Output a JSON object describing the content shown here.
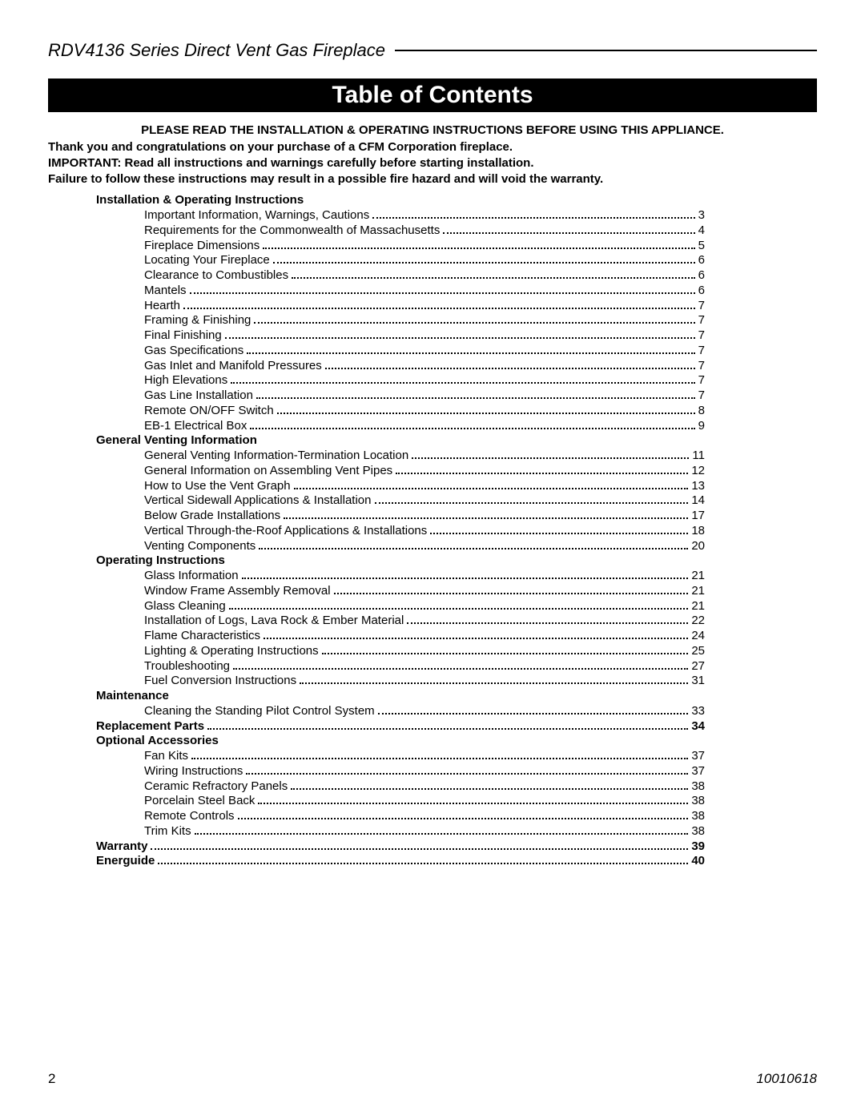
{
  "header": {
    "product_line": "RDV4136 Series Direct Vent Gas Fireplace"
  },
  "title_bar": "Table of Contents",
  "intro_centered": "PLEASE READ THE INSTALLATION & OPERATING INSTRUCTIONS BEFORE USING THIS APPLIANCE.",
  "intro_lines": [
    "Thank you and congratulations on your purchase of a CFM Corporation fireplace.",
    "IMPORTANT:  Read all instructions and warnings carefully before starting installation.",
    "Failure to follow these instructions may result in a possible fire hazard and will void the warranty."
  ],
  "toc": [
    {
      "type": "section",
      "label": "Installation & Operating Instructions"
    },
    {
      "type": "item",
      "label": "Important Information, Warnings, Cautions",
      "page": "3"
    },
    {
      "type": "item",
      "label": "Requirements for the Commonwealth of Massachusetts",
      "page": "4"
    },
    {
      "type": "item",
      "label": "Fireplace Dimensions",
      "page": "5"
    },
    {
      "type": "item",
      "label": "Locating Your Fireplace",
      "page": "6"
    },
    {
      "type": "item",
      "label": "Clearance to Combustibles",
      "page": "6"
    },
    {
      "type": "item",
      "label": "Mantels",
      "page": "6"
    },
    {
      "type": "item",
      "label": "Hearth",
      "page": "7"
    },
    {
      "type": "item",
      "label": "Framing & Finishing",
      "page": "7"
    },
    {
      "type": "item",
      "label": "Final Finishing",
      "page": "7"
    },
    {
      "type": "item",
      "label": "Gas Specifications",
      "page": "7"
    },
    {
      "type": "item",
      "label": "Gas Inlet and Manifold Pressures",
      "page": "7"
    },
    {
      "type": "item",
      "label": "High Elevations",
      "page": "7"
    },
    {
      "type": "item",
      "label": "Gas Line Installation",
      "page": "7"
    },
    {
      "type": "item",
      "label": "Remote ON/OFF Switch",
      "page": "8"
    },
    {
      "type": "item",
      "label": "EB-1 Electrical Box",
      "page": "9"
    },
    {
      "type": "section",
      "label": "General Venting Information"
    },
    {
      "type": "item",
      "label": "General Venting Information-Termination Location",
      "page": "11"
    },
    {
      "type": "item",
      "label": "General Information on Assembling Vent Pipes",
      "page": "12"
    },
    {
      "type": "item",
      "label": "How to Use the Vent Graph",
      "page": "13"
    },
    {
      "type": "item",
      "label": "Vertical Sidewall Applications & Installation",
      "page": "14"
    },
    {
      "type": "item",
      "label": "Below Grade Installations",
      "page": "17"
    },
    {
      "type": "item",
      "label": "Vertical Through-the-Roof Applications & Installations",
      "page": "18"
    },
    {
      "type": "item",
      "label": "Venting Components",
      "page": "20"
    },
    {
      "type": "section",
      "label": "Operating Instructions"
    },
    {
      "type": "item",
      "label": "Glass Information",
      "page": "21"
    },
    {
      "type": "item",
      "label": "Window Frame Assembly Removal",
      "page": "21"
    },
    {
      "type": "item",
      "label": "Glass Cleaning",
      "page": "21"
    },
    {
      "type": "item",
      "label": "Installation of Logs, Lava Rock & Ember Material",
      "page": "22"
    },
    {
      "type": "item",
      "label": "Flame Characteristics",
      "page": "24"
    },
    {
      "type": "item",
      "label": "Lighting & Operating Instructions",
      "page": "25"
    },
    {
      "type": "item",
      "label": "Troubleshooting",
      "page": "27"
    },
    {
      "type": "item",
      "label": "Fuel Conversion Instructions",
      "page": "31"
    },
    {
      "type": "section",
      "label": "Maintenance"
    },
    {
      "type": "item",
      "label": "Cleaning the Standing Pilot Control System",
      "page": "33"
    },
    {
      "type": "bold",
      "label": "Replacement Parts",
      "page": "34"
    },
    {
      "type": "section",
      "label": "Optional Accessories"
    },
    {
      "type": "item",
      "label": "Fan Kits",
      "page": "37"
    },
    {
      "type": "item",
      "label": "Wiring Instructions",
      "page": "37"
    },
    {
      "type": "item",
      "label": "Ceramic Refractory Panels",
      "page": "38"
    },
    {
      "type": "item",
      "label": "Porcelain Steel Back",
      "page": "38"
    },
    {
      "type": "item",
      "label": "Remote Controls",
      "page": "38"
    },
    {
      "type": "item",
      "label": "Trim Kits",
      "page": "38"
    },
    {
      "type": "bold",
      "label": "Warranty",
      "page": "39"
    },
    {
      "type": "bold",
      "label": "Energuide",
      "page": "40"
    }
  ],
  "footer": {
    "page_number": "2",
    "doc_number": "10010618"
  },
  "style": {
    "background_color": "#ffffff",
    "text_color": "#000000",
    "title_bar_bg": "#000000",
    "title_bar_fg": "#ffffff",
    "body_font_size_pt": 11,
    "title_font_size_pt": 22,
    "header_font_size_pt": 16
  }
}
